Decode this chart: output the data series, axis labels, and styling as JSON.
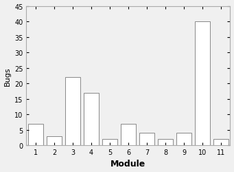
{
  "categories": [
    1,
    2,
    3,
    4,
    5,
    6,
    7,
    8,
    9,
    10,
    11
  ],
  "values": [
    7,
    3,
    22,
    17,
    2,
    7,
    4,
    2,
    4,
    40,
    2
  ],
  "xlabel": "Module",
  "ylabel": "Bugs",
  "ylim": [
    0,
    45
  ],
  "yticks": [
    0,
    5,
    10,
    15,
    20,
    25,
    30,
    35,
    40,
    45
  ],
  "bar_color": "#ffffff",
  "bar_edgecolor": "#888888",
  "background_color": "#f0f0f0",
  "bar_width": 0.8,
  "xlabel_fontsize": 9,
  "ylabel_fontsize": 8,
  "tick_fontsize": 7,
  "xlabel_fontweight": "bold"
}
